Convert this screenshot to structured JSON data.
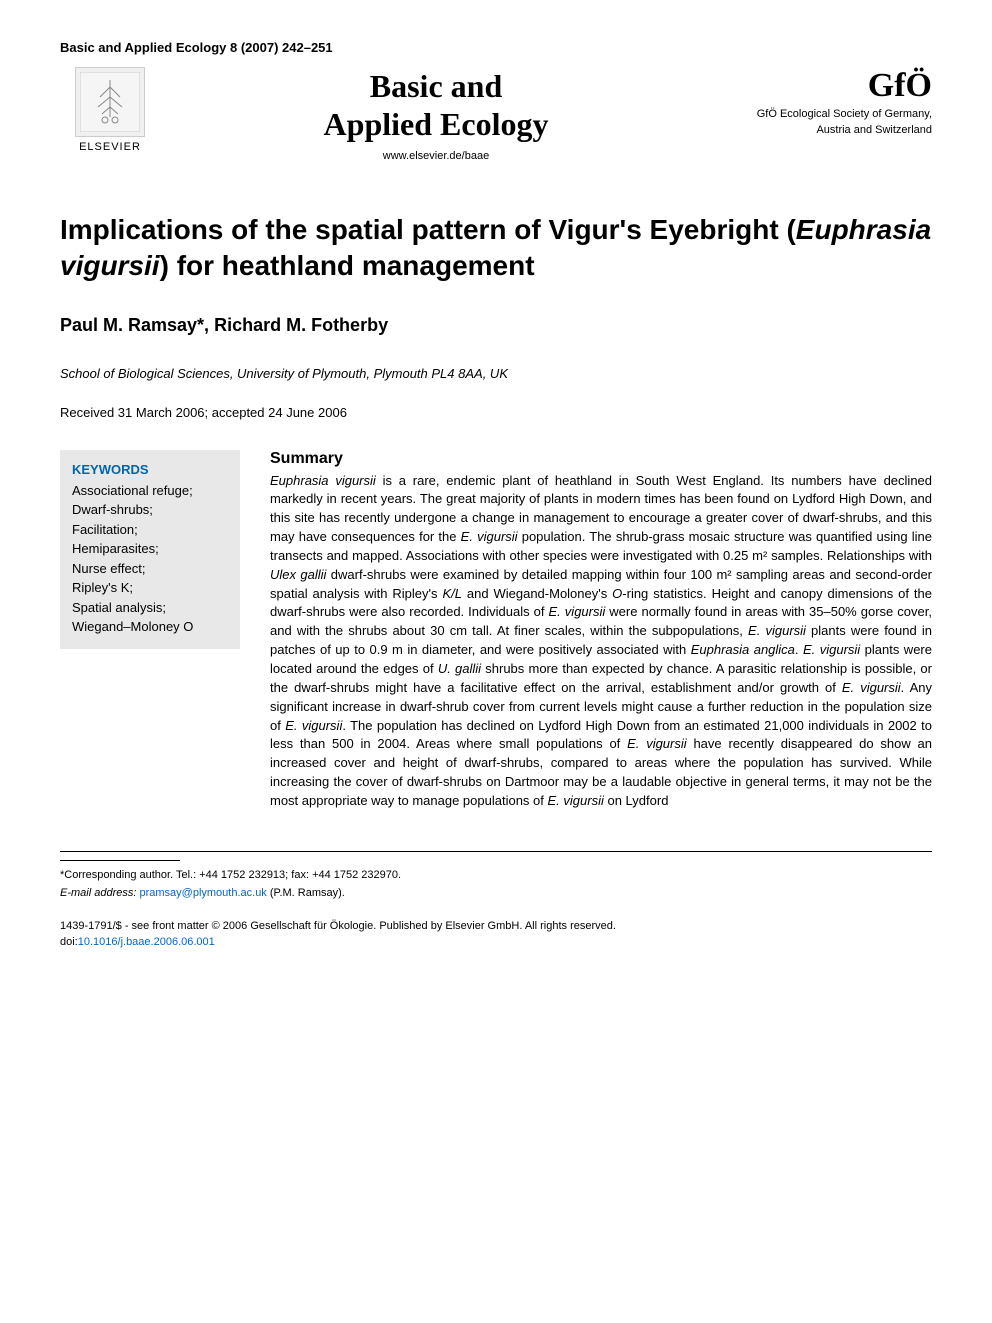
{
  "citation": "Basic and Applied Ecology 8 (2007) 242–251",
  "header": {
    "elsevier_label": "ELSEVIER",
    "journal_title_line1": "Basic and",
    "journal_title_line2": "Applied Ecology",
    "journal_url": "www.elsevier.de/baae",
    "society_logo": "GfÖ",
    "society_line1": "GfÖ Ecological Society of Germany,",
    "society_line2": "Austria and Switzerland"
  },
  "article": {
    "title_html": "Implications of the spatial pattern of Vigur's Eyebright (<span class=\"italic\">Euphrasia vigursii</span>) for heathland management",
    "authors": "Paul M. Ramsay*, Richard M. Fotherby",
    "affiliation": "School of Biological Sciences, University of Plymouth, Plymouth PL4 8AA, UK",
    "dates": "Received 31 March 2006; accepted 24 June 2006"
  },
  "keywords": {
    "heading": "KEYWORDS",
    "items": [
      "Associational refuge;",
      "Dwarf-shrubs;",
      "Facilitation;",
      "Hemiparasites;",
      "Nurse effect;",
      "Ripley's K;",
      "Spatial analysis;",
      "Wiegand–Moloney O"
    ],
    "box_bg": "#e8e8e8",
    "heading_color": "#0066aa"
  },
  "summary": {
    "heading": "Summary",
    "text_html": "<span class=\"italic\">Euphrasia vigursii</span> is a rare, endemic plant of heathland in South West England. Its numbers have declined markedly in recent years. The great majority of plants in modern times has been found on Lydford High Down, and this site has recently undergone a change in management to encourage a greater cover of dwarf-shrubs, and this may have consequences for the <span class=\"italic\">E. vigursii</span> population. The shrub-grass mosaic structure was quantified using line transects and mapped. Associations with other species were investigated with 0.25 m² samples. Relationships with <span class=\"italic\">Ulex gallii</span> dwarf-shrubs were examined by detailed mapping within four 100 m² sampling areas and second-order spatial analysis with Ripley's <span class=\"italic\">K/L</span> and Wiegand-Moloney's <span class=\"italic\">O</span>-ring statistics. Height and canopy dimensions of the dwarf-shrubs were also recorded. Individuals of <span class=\"italic\">E. vigursii</span> were normally found in areas with 35–50% gorse cover, and with the shrubs about 30 cm tall. At finer scales, within the subpopulations, <span class=\"italic\">E. vigursii</span> plants were found in patches of up to 0.9 m in diameter, and were positively associated with <span class=\"italic\">Euphrasia anglica</span>. <span class=\"italic\">E. vigursii</span> plants were located around the edges of <span class=\"italic\">U. gallii</span> shrubs more than expected by chance. A parasitic relationship is possible, or the dwarf-shrubs might have a facilitative effect on the arrival, establishment and/or growth of <span class=\"italic\">E. vigursii</span>. Any significant increase in dwarf-shrub cover from current levels might cause a further reduction in the population size of <span class=\"italic\">E. vigursii</span>. The population has declined on Lydford High Down from an estimated 21,000 individuals in 2002 to less than 500 in 2004. Areas where small populations of <span class=\"italic\">E. vigursii</span> have recently disappeared do show an increased cover and height of dwarf-shrubs, compared to areas where the population has survived. While increasing the cover of dwarf-shrubs on Dartmoor may be a laudable objective in general terms, it may not be the most appropriate way to manage populations of <span class=\"italic\">E. vigursii</span> on Lydford"
  },
  "footer": {
    "corresponding": "*Corresponding author. Tel.: +44 1752 232913; fax: +44 1752 232970.",
    "email_label": "E-mail address:",
    "email": "pramsay@plymouth.ac.uk",
    "email_person": "(P.M. Ramsay).",
    "copyright": "1439-1791/$ - see front matter © 2006 Gesellschaft für Ökologie. Published by Elsevier GmbH. All rights reserved.",
    "doi_prefix": "doi:",
    "doi": "10.1016/j.baae.2006.06.001"
  },
  "colors": {
    "background": "#ffffff",
    "text": "#000000",
    "link": "#0066cc"
  },
  "typography": {
    "body_font": "Arial, Helvetica, sans-serif",
    "journal_font": "Georgia, Times New Roman, serif",
    "citation_size": 13,
    "journal_title_size": 32,
    "article_title_size": 28,
    "authors_size": 18,
    "affiliation_size": 13,
    "summary_size": 13,
    "footer_size": 11
  }
}
